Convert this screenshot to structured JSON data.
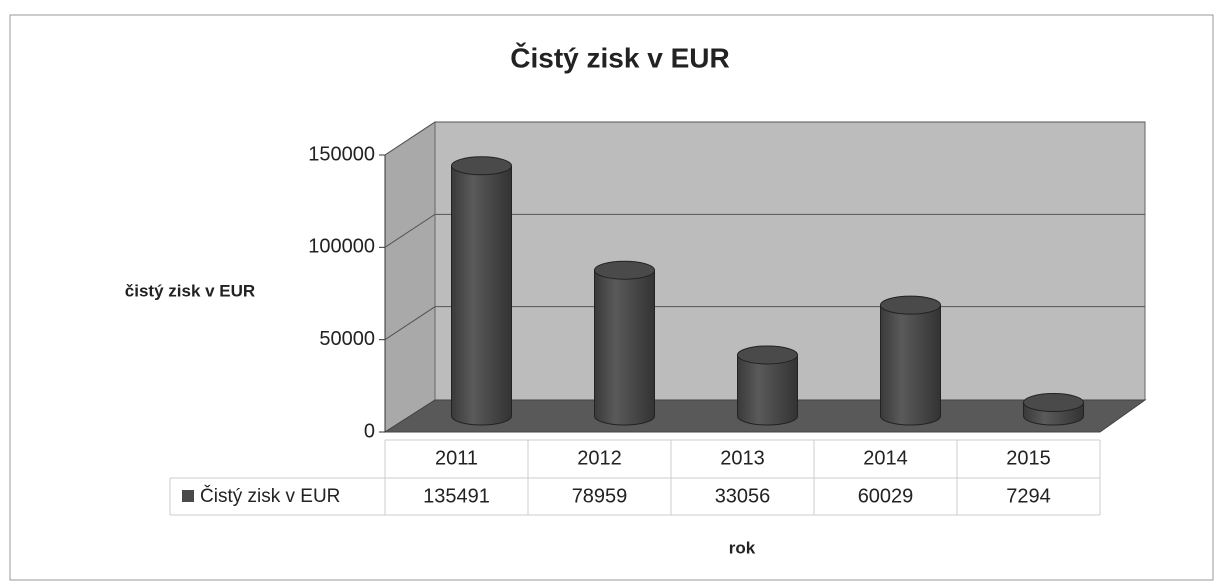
{
  "chart_data": {
    "type": "bar",
    "title": "Čistý zisk v EUR",
    "y_label": "čistý zisk v EUR",
    "x_label": "rok",
    "categories": [
      "2011",
      "2012",
      "2013",
      "2014",
      "2015"
    ],
    "series": [
      {
        "name": "Čistý zisk v EUR",
        "color": "#4a4a4a",
        "values": [
          135491,
          78959,
          33056,
          60029,
          7294
        ]
      }
    ],
    "ylim": [
      0,
      150000
    ],
    "yticks": [
      0,
      50000,
      100000,
      150000
    ],
    "grid": true,
    "legend": "table"
  }
}
